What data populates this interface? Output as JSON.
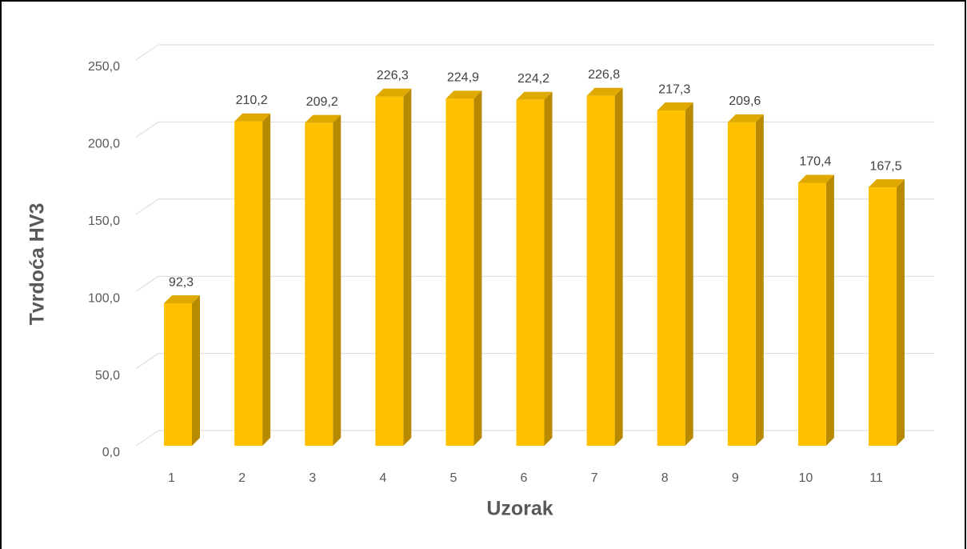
{
  "chart_data": {
    "type": "bar",
    "y_axis_label": "Tvrdoća HV3",
    "x_axis_label": "Uzorak",
    "categories": [
      "1",
      "2",
      "3",
      "4",
      "5",
      "6",
      "7",
      "8",
      "9",
      "10",
      "11"
    ],
    "values": [
      92.3,
      210.2,
      209.2,
      226.3,
      224.9,
      224.2,
      226.8,
      217.3,
      209.6,
      170.4,
      167.5
    ],
    "value_labels": [
      "92,3",
      "210,2",
      "209,2",
      "226,3",
      "224,9",
      "224,2",
      "226,8",
      "217,3",
      "209,6",
      "170,4",
      "167,5"
    ],
    "color": "#FFC000",
    "ylim": [
      0,
      250
    ],
    "yticks": [
      {
        "value": 0,
        "label": "0,0"
      },
      {
        "value": 50,
        "label": "50,0"
      },
      {
        "value": 100,
        "label": "100,0"
      },
      {
        "value": 150,
        "label": "150,0"
      },
      {
        "value": 200,
        "label": "200,0"
      },
      {
        "value": 250,
        "label": "250,0"
      }
    ],
    "grid": true
  }
}
